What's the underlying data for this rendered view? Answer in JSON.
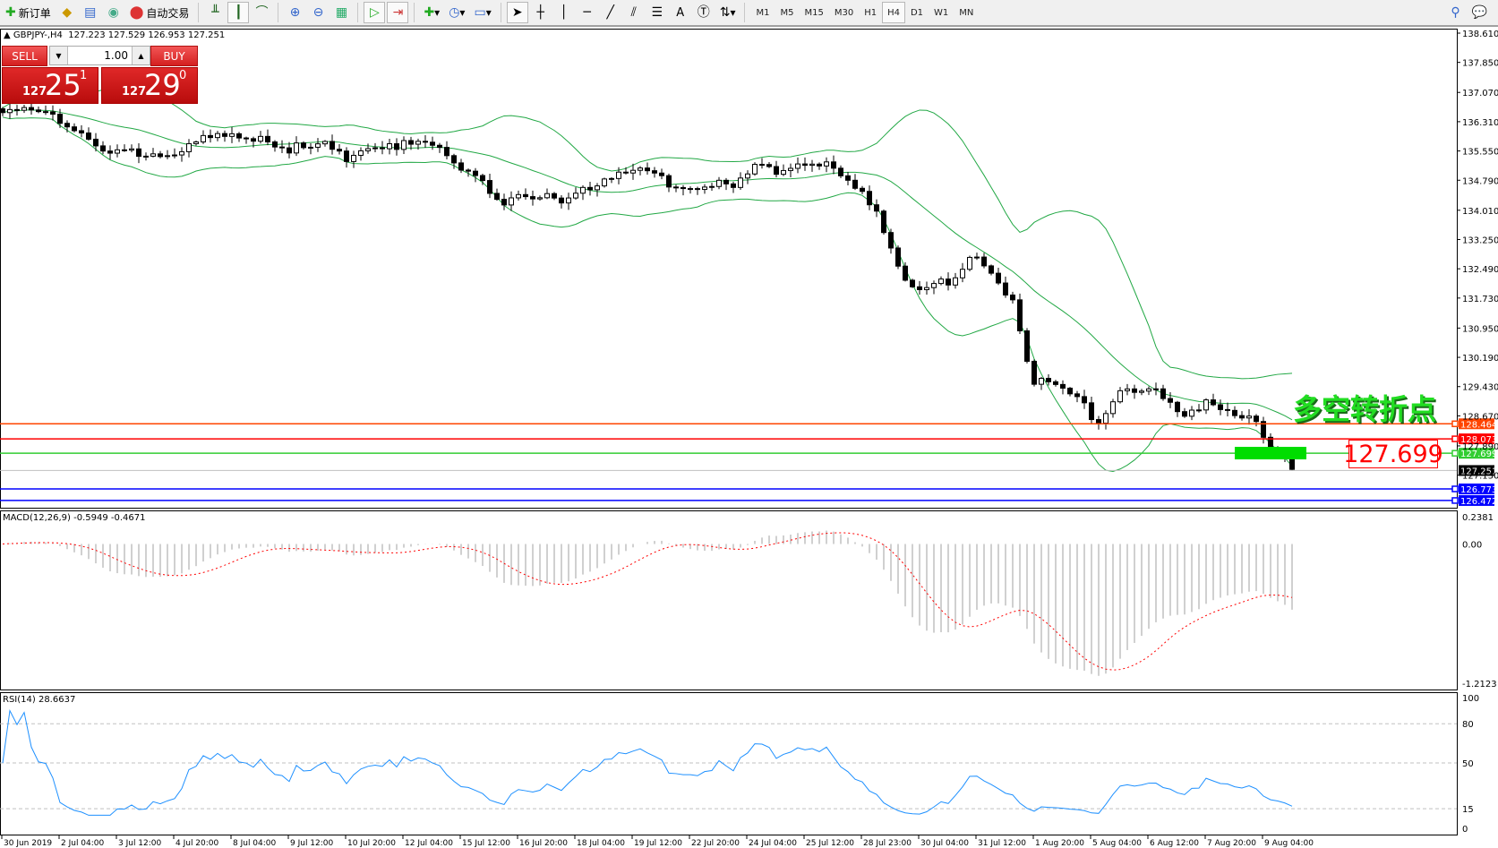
{
  "toolbar": {
    "new_order": "新订单",
    "auto_trading": "自动交易",
    "timeframes": [
      "M1",
      "M5",
      "M15",
      "M30",
      "H1",
      "H4",
      "D1",
      "W1",
      "MN"
    ],
    "active_timeframe": "H4",
    "text_tool": "A"
  },
  "header": {
    "symbol": "GBPJPY-,H4",
    "ohlc": "127.223 127.529 126.953 127.251"
  },
  "trade_panel": {
    "sell_label": "SELL",
    "buy_label": "BUY",
    "lot": "1.00",
    "sell_price": {
      "small": "127",
      "big": "25",
      "pip": "1"
    },
    "buy_price": {
      "small": "127",
      "big": "29",
      "pip": "0"
    }
  },
  "annotation": {
    "text": "多空转折点",
    "price_box": "127.699",
    "color": "#22dd22"
  },
  "macd": {
    "label": "MACD(12,26,9) -0.5949 -0.4671",
    "axis": [
      "0.2381",
      "0.00",
      "-1.2123"
    ]
  },
  "rsi": {
    "label": "RSI(14) 28.6637",
    "axis": [
      "100",
      "80",
      "50",
      "15",
      "0"
    ]
  },
  "chart_data": {
    "type": "candlestick",
    "symbol": "GBPJPY",
    "timeframe": "H4",
    "ylim": [
      126.37,
      138.61
    ],
    "price_ticks": [
      "138.610",
      "137.850",
      "137.070",
      "136.310",
      "135.550",
      "134.790",
      "134.010",
      "133.250",
      "132.490",
      "131.730",
      "130.950",
      "130.190",
      "129.430",
      "128.670",
      "127.890",
      "127.130",
      "126.370"
    ],
    "date_ticks": [
      "30 Jun 2019",
      "2 Jul 04:00",
      "3 Jul 12:00",
      "4 Jul 20:00",
      "8 Jul 04:00",
      "9 Jul 12:00",
      "10 Jul 20:00",
      "12 Jul 04:00",
      "15 Jul 12:00",
      "16 Jul 20:00",
      "18 Jul 04:00",
      "19 Jul 12:00",
      "22 Jul 20:00",
      "24 Jul 04:00",
      "25 Jul 12:00",
      "28 Jul 23:00",
      "30 Jul 04:00",
      "31 Jul 12:00",
      "1 Aug 20:00",
      "5 Aug 04:00",
      "6 Aug 12:00",
      "7 Aug 20:00",
      "9 Aug 04:00"
    ],
    "approx_closes_every_3_bars": [
      136.4,
      136.6,
      136.7,
      136.3,
      135.7,
      135.45,
      135.55,
      135.55,
      135.6,
      135.75,
      135.85,
      135.85,
      136.05,
      135.65,
      135.6,
      135.65,
      135.45,
      135.7,
      135.8,
      135.65,
      135.65,
      135.3,
      135.05,
      134.3,
      134.25,
      134.3,
      134.2,
      134.65,
      134.85,
      134.9,
      134.95,
      134.65,
      134.7,
      134.65,
      134.55,
      135.05,
      135.0,
      135.35,
      135.3,
      134.8,
      134.35,
      133.6,
      132.2,
      132.05,
      132.05,
      132.65,
      132.55,
      131.7,
      129.5,
      129.4,
      129.05,
      128.6,
      129.4,
      129.45,
      129.1,
      128.6,
      129.2,
      128.9,
      128.7,
      127.8,
      127.25
    ],
    "indicators": [
      "Bollinger Bands(20,2)",
      "MACD(12,26,9)",
      "RSI(14)"
    ],
    "hlines": [
      {
        "price": "128.464",
        "color": "#ff4500"
      },
      {
        "price": "128.073",
        "color": "#ff0000"
      },
      {
        "price": "127.699",
        "color": "#32cd32"
      },
      {
        "price": "126.773",
        "color": "#0000ff"
      },
      {
        "price": "126.472",
        "color": "#0000ff"
      }
    ],
    "bid": {
      "price": "127.251",
      "color": "#000000"
    },
    "band_color": "#22a845",
    "macd_signal_color": "#ff0000",
    "rsi_color": "#1e90ff",
    "rsi_levels": [
      80,
      50,
      15
    ]
  }
}
